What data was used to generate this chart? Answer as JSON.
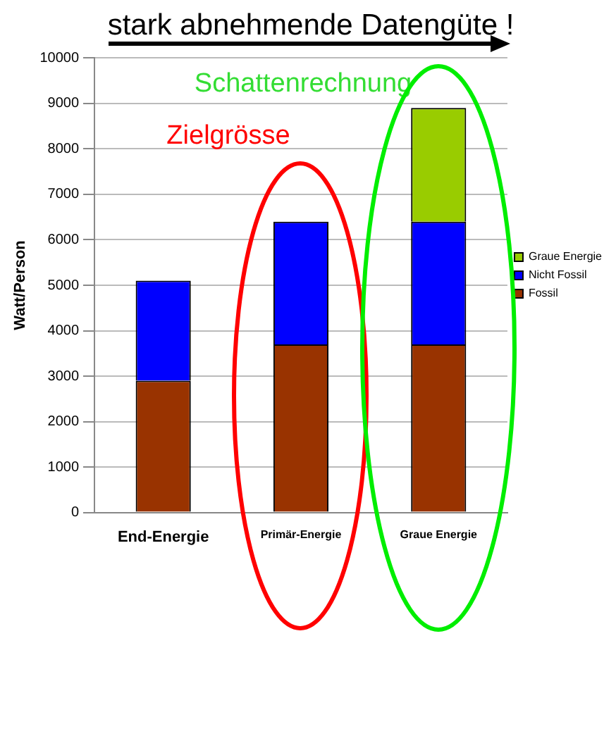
{
  "chart_data": {
    "type": "bar",
    "title": "stark abnehmende Datengüte !",
    "ylabel": "Watt/Person",
    "categories": [
      "End-Energie",
      "Primär-Energie",
      "Graue Energie"
    ],
    "stacked": true,
    "series": [
      {
        "name": "Fossil",
        "color": "#993300",
        "values": [
          2900,
          3700,
          3700
        ]
      },
      {
        "name": "Nicht Fossil",
        "color": "#0000ff",
        "values": [
          2200,
          2700,
          2700
        ]
      },
      {
        "name": "Graue Energie",
        "color": "#99cc00",
        "values": [
          0,
          0,
          2500
        ]
      }
    ],
    "ylim": [
      0,
      10000
    ],
    "yticks": [
      0,
      1000,
      2000,
      3000,
      4000,
      5000,
      6000,
      7000,
      8000,
      9000,
      10000
    ],
    "grid": "y",
    "legend": "right",
    "annotations": [
      "Schattenrechnung",
      "Zielgrösse"
    ]
  }
}
